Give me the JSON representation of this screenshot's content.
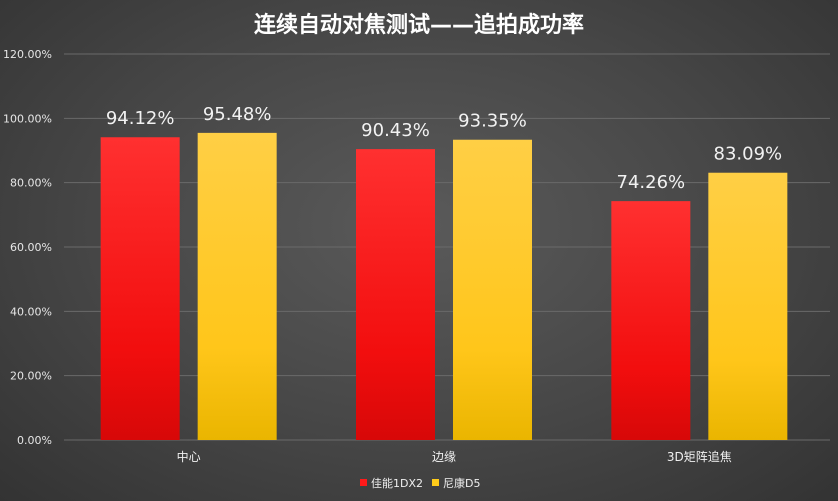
{
  "chart_data": {
    "type": "bar",
    "title": "连续自动对焦测试——追拍成功率",
    "categories": [
      "中心",
      "边缘",
      "3D矩阵追焦"
    ],
    "series": [
      {
        "name": "佳能1DX2",
        "values": [
          94.12,
          90.43,
          74.26
        ],
        "labels": [
          "94.12%",
          "90.43%",
          "74.26%"
        ],
        "color": "#ff1a1a"
      },
      {
        "name": "尼康D5",
        "values": [
          95.48,
          93.35,
          83.09
        ],
        "labels": [
          "95.48%",
          "93.35%",
          "83.09%"
        ],
        "color": "#ffcc1a"
      }
    ],
    "yticks": [
      "0.00%",
      "20.00%",
      "40.00%",
      "60.00%",
      "80.00%",
      "100.00%",
      "120.00%"
    ],
    "ylim": [
      0,
      120
    ],
    "grid": true,
    "legend": "bottom"
  }
}
